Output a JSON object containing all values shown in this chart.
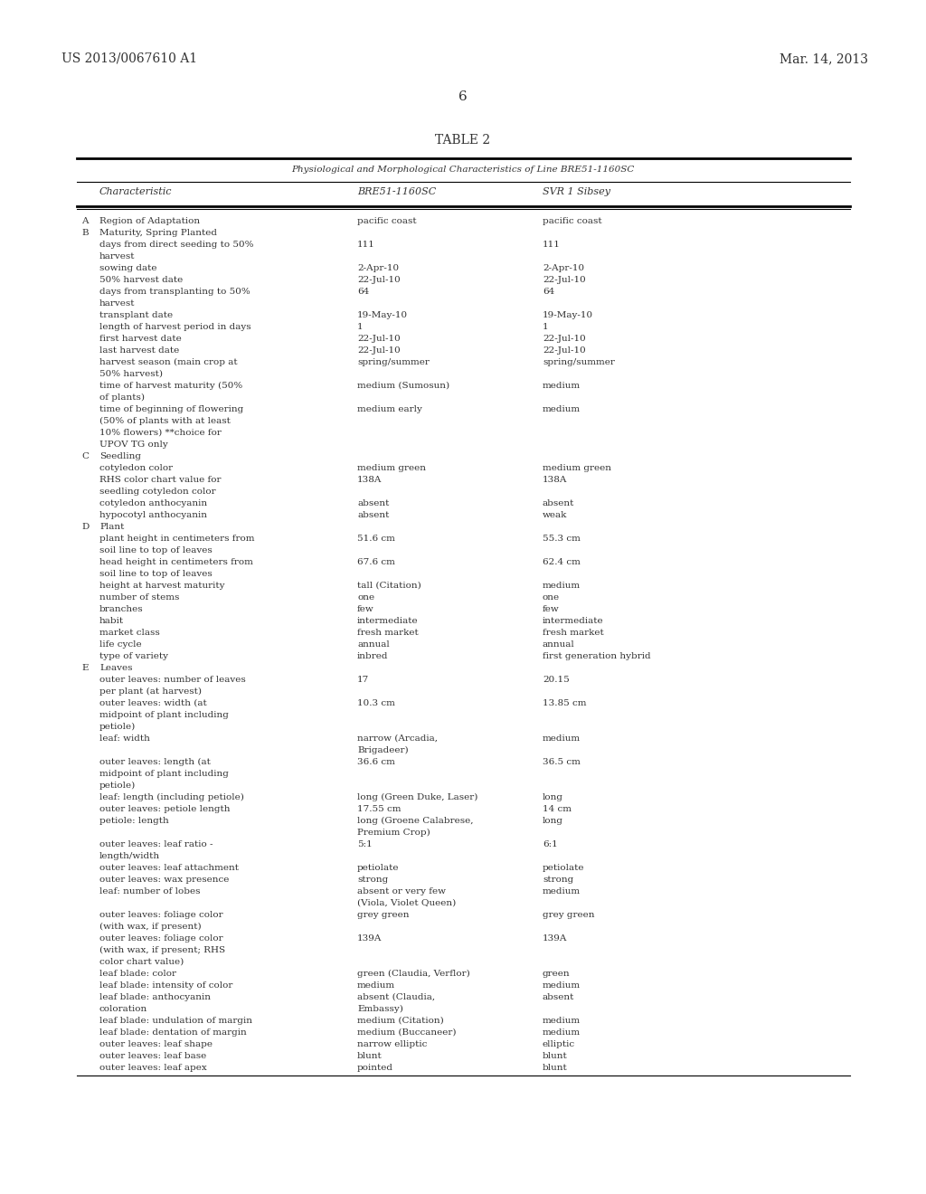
{
  "header_left": "US 2013/0067610 A1",
  "header_right": "Mar. 14, 2013",
  "page_number": "6",
  "table_title": "TABLE 2",
  "table_subtitle": "Physiological and Morphological Characteristics of Line BRE51-1160SC",
  "col_headers": [
    "Characteristic",
    "BRE51-1160SC",
    "SVR 1 Sibsey"
  ],
  "bg_color": "#f0f0f0",
  "text_color": "#333333",
  "sections": [
    {
      "letter": "A",
      "label": "Region of Adaptation",
      "val1": "pacific coast",
      "val2": "pacific coast",
      "header": false
    },
    {
      "letter": "B",
      "label": "Maturity, Spring Planted",
      "val1": "",
      "val2": "",
      "header": true
    },
    {
      "letter": "",
      "label": "days from direct seeding to 50%\nharvest",
      "val1": "111",
      "val2": "111",
      "header": false
    },
    {
      "letter": "",
      "label": "sowing date",
      "val1": "2-Apr-10",
      "val2": "2-Apr-10",
      "header": false
    },
    {
      "letter": "",
      "label": "50% harvest date",
      "val1": "22-Jul-10",
      "val2": "22-Jul-10",
      "header": false
    },
    {
      "letter": "",
      "label": "days from transplanting to 50%\nharvest",
      "val1": "64",
      "val2": "64",
      "header": false
    },
    {
      "letter": "",
      "label": "transplant date",
      "val1": "19-May-10",
      "val2": "19-May-10",
      "header": false
    },
    {
      "letter": "",
      "label": "length of harvest period in days",
      "val1": "1",
      "val2": "1",
      "header": false
    },
    {
      "letter": "",
      "label": "first harvest date",
      "val1": "22-Jul-10",
      "val2": "22-Jul-10",
      "header": false
    },
    {
      "letter": "",
      "label": "last harvest date",
      "val1": "22-Jul-10",
      "val2": "22-Jul-10",
      "header": false
    },
    {
      "letter": "",
      "label": "harvest season (main crop at\n50% harvest)",
      "val1": "spring/summer",
      "val2": "spring/summer",
      "header": false
    },
    {
      "letter": "",
      "label": "time of harvest maturity (50%\nof plants)",
      "val1": "medium (Sumosun)",
      "val2": "medium",
      "header": false
    },
    {
      "letter": "",
      "label": "time of beginning of flowering\n(50% of plants with at least\n10% flowers) **choice for\nUPOV TG only",
      "val1": "medium early",
      "val2": "medium",
      "header": false
    },
    {
      "letter": "C",
      "label": "Seedling",
      "val1": "",
      "val2": "",
      "header": true
    },
    {
      "letter": "",
      "label": "cotyledon color",
      "val1": "medium green",
      "val2": "medium green",
      "header": false
    },
    {
      "letter": "",
      "label": "RHS color chart value for\nseedling cotyledon color",
      "val1": "138A",
      "val2": "138A",
      "header": false
    },
    {
      "letter": "",
      "label": "cotyledon anthocyanin",
      "val1": "absent",
      "val2": "absent",
      "header": false
    },
    {
      "letter": "",
      "label": "hypocotyl anthocyanin",
      "val1": "absent",
      "val2": "weak",
      "header": false
    },
    {
      "letter": "D",
      "label": "Plant",
      "val1": "",
      "val2": "",
      "header": true
    },
    {
      "letter": "",
      "label": "plant height in centimeters from\nsoil line to top of leaves",
      "val1": "51.6 cm",
      "val2": "55.3 cm",
      "header": false
    },
    {
      "letter": "",
      "label": "head height in centimeters from\nsoil line to top of leaves",
      "val1": "67.6 cm",
      "val2": "62.4 cm",
      "header": false
    },
    {
      "letter": "",
      "label": "height at harvest maturity",
      "val1": "tall (Citation)",
      "val2": "medium",
      "header": false
    },
    {
      "letter": "",
      "label": "number of stems",
      "val1": "one",
      "val2": "one",
      "header": false
    },
    {
      "letter": "",
      "label": "branches",
      "val1": "few",
      "val2": "few",
      "header": false
    },
    {
      "letter": "",
      "label": "habit",
      "val1": "intermediate",
      "val2": "intermediate",
      "header": false
    },
    {
      "letter": "",
      "label": "market class",
      "val1": "fresh market",
      "val2": "fresh market",
      "header": false
    },
    {
      "letter": "",
      "label": "life cycle",
      "val1": "annual",
      "val2": "annual",
      "header": false
    },
    {
      "letter": "",
      "label": "type of variety",
      "val1": "inbred",
      "val2": "first generation hybrid",
      "header": false
    },
    {
      "letter": "E",
      "label": "Leaves",
      "val1": "",
      "val2": "",
      "header": true
    },
    {
      "letter": "",
      "label": "outer leaves: number of leaves\nper plant (at harvest)",
      "val1": "17",
      "val2": "20.15",
      "header": false
    },
    {
      "letter": "",
      "label": "outer leaves: width (at\nmidpoint of plant including\npetiole)",
      "val1": "10.3 cm",
      "val2": "13.85 cm",
      "header": false
    },
    {
      "letter": "",
      "label": "leaf: width",
      "val1": "narrow (Arcadia,\nBrigadeer)",
      "val2": "medium",
      "header": false
    },
    {
      "letter": "",
      "label": "outer leaves: length (at\nmidpoint of plant including\npetiole)",
      "val1": "36.6 cm",
      "val2": "36.5 cm",
      "header": false
    },
    {
      "letter": "",
      "label": "leaf: length (including petiole)",
      "val1": "long (Green Duke, Laser)",
      "val2": "long",
      "header": false
    },
    {
      "letter": "",
      "label": "outer leaves: petiole length",
      "val1": "17.55 cm",
      "val2": "14 cm",
      "header": false
    },
    {
      "letter": "",
      "label": "petiole: length",
      "val1": "long (Groene Calabrese,\nPremium Crop)",
      "val2": "long",
      "header": false
    },
    {
      "letter": "",
      "label": "outer leaves: leaf ratio -\nlength/width",
      "val1": "5:1",
      "val2": "6:1",
      "header": false
    },
    {
      "letter": "",
      "label": "outer leaves: leaf attachment",
      "val1": "petiolate",
      "val2": "petiolate",
      "header": false
    },
    {
      "letter": "",
      "label": "outer leaves: wax presence",
      "val1": "strong",
      "val2": "strong",
      "header": false
    },
    {
      "letter": "",
      "label": "leaf: number of lobes",
      "val1": "absent or very few\n(Viola, Violet Queen)",
      "val2": "medium",
      "header": false
    },
    {
      "letter": "",
      "label": "outer leaves: foliage color\n(with wax, if present)",
      "val1": "grey green",
      "val2": "grey green",
      "header": false
    },
    {
      "letter": "",
      "label": "outer leaves: foliage color\n(with wax, if present; RHS\ncolor chart value)",
      "val1": "139A",
      "val2": "139A",
      "header": false
    },
    {
      "letter": "",
      "label": "leaf blade: color",
      "val1": "green (Claudia, Verflor)",
      "val2": "green",
      "header": false
    },
    {
      "letter": "",
      "label": "leaf blade: intensity of color",
      "val1": "medium",
      "val2": "medium",
      "header": false
    },
    {
      "letter": "",
      "label": "leaf blade: anthocyanin\ncoloration",
      "val1": "absent (Claudia,\nEmbassy)",
      "val2": "absent",
      "header": false
    },
    {
      "letter": "",
      "label": "leaf blade: undulation of margin",
      "val1": "medium (Citation)",
      "val2": "medium",
      "header": false
    },
    {
      "letter": "",
      "label": "leaf blade: dentation of margin",
      "val1": "medium (Buccaneer)",
      "val2": "medium",
      "header": false
    },
    {
      "letter": "",
      "label": "outer leaves: leaf shape",
      "val1": "narrow elliptic",
      "val2": "elliptic",
      "header": false
    },
    {
      "letter": "",
      "label": "outer leaves: leaf base",
      "val1": "blunt",
      "val2": "blunt",
      "header": false
    },
    {
      "letter": "",
      "label": "outer leaves: leaf apex",
      "val1": "pointed",
      "val2": "blunt",
      "header": false
    }
  ]
}
